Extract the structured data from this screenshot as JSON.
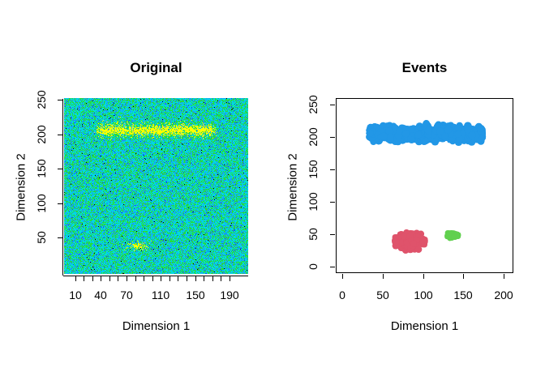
{
  "figure": {
    "background": "#ffffff",
    "panels": [
      {
        "title": "Original",
        "xlabel": "Dimension 1",
        "ylabel": "Dimension 2"
      },
      {
        "title": "Events",
        "xlabel": "Dimension 1",
        "ylabel": "Dimension 2"
      }
    ]
  },
  "chart_data": [
    {
      "type": "heatmap",
      "title": "Original",
      "xlabel": "Dimension 1",
      "ylabel": "Dimension 2",
      "xlim": [
        -3,
        212
      ],
      "ylim": [
        -3,
        252
      ],
      "grid": false,
      "legend": "none",
      "xticks_minor": [
        10,
        20,
        30,
        40,
        50,
        60,
        70,
        80,
        90,
        100,
        110,
        120,
        130,
        140,
        150,
        160,
        170,
        180,
        190
      ],
      "xticks_labeled": [
        10,
        40,
        70,
        110,
        150,
        190
      ],
      "yticks": [
        50,
        100,
        150,
        200,
        250
      ],
      "noise_palette": {
        "cyan": "#00D9E0",
        "green": "#25DC3C",
        "blue": "#1E90FF",
        "dark_blue": "#0A50E6",
        "black": "#000000"
      },
      "noise_weights": {
        "cyan": 0.46,
        "green": 0.34,
        "blue": 0.17,
        "dark_blue": 0.025,
        "black": 0.005
      },
      "signal_color": "#FFFF00",
      "signal_color_alt": "#C8EE16",
      "band": {
        "x_range": [
          37,
          172
        ],
        "y_center": 206,
        "y_sigma": 5,
        "peak_density": 0.85
      },
      "blob": {
        "center": [
          82,
          38
        ],
        "sigma": [
          6.5,
          3.2
        ],
        "peak_density": 0.85
      }
    },
    {
      "type": "scatter",
      "title": "Events",
      "xlabel": "Dimension 1",
      "ylabel": "Dimension 2",
      "xlim": [
        -8,
        212
      ],
      "ylim": [
        -10,
        260
      ],
      "grid": false,
      "legend": "none",
      "xticks": [
        0,
        50,
        100,
        150,
        200
      ],
      "yticks": [
        0,
        50,
        100,
        150,
        200,
        250
      ],
      "clusters": [
        {
          "name": "band-cluster",
          "color": "#2297E6",
          "shape": "band",
          "x_range": [
            33,
            174
          ],
          "y_center": 205,
          "y_sigma": 5,
          "n": 700,
          "marker_radius": 4.5
        },
        {
          "name": "red-cluster",
          "color": "#DF536B",
          "shape": "blob",
          "center": [
            84,
            39
          ],
          "sigma": [
            8,
            6
          ],
          "n": 260,
          "marker_radius": 4
        },
        {
          "name": "green-cluster",
          "color": "#61D04F",
          "shape": "blob",
          "center": [
            137,
            48
          ],
          "sigma": [
            3,
            2
          ],
          "n": 85,
          "marker_radius": 3.3
        }
      ]
    }
  ]
}
